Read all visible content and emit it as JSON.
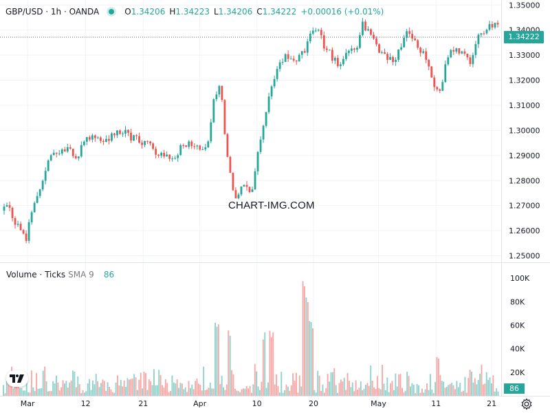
{
  "header": {
    "symbol": "GBP/USD · 1h · OANDA",
    "o_label": "O",
    "o_value": "1.34206",
    "h_label": "H",
    "h_value": "1.34223",
    "l_label": "L",
    "l_value": "1.34206",
    "c_label": "C",
    "c_value": "1.34222",
    "change": "+0.00016 (+0.01%)"
  },
  "last_price_label": "1.34222",
  "watermark": "CHART-IMG.COM",
  "volume_header": {
    "title": "Volume · Ticks",
    "sma": "SMA 9",
    "value": "86"
  },
  "volume_last_label": "86",
  "colors": {
    "up": "#26a69a",
    "down": "#ef5350",
    "text": "#131722",
    "grid": "#f0f3fa",
    "sma": "#2962ff"
  },
  "chart_data": [
    {
      "type": "candlestick",
      "title": "GBP/USD · 1h · OANDA",
      "y_ticks": [
        "1.35000",
        "1.34000",
        "1.33000",
        "1.32000",
        "1.31000",
        "1.30000",
        "1.29000",
        "1.28000",
        "1.27000",
        "1.26000",
        "1.25000"
      ],
      "ylim": [
        1.2474,
        1.352
      ],
      "x_ticks": [
        {
          "label": "Mar",
          "pos": 0.05
        },
        {
          "label": "12",
          "pos": 0.167
        },
        {
          "label": "21",
          "pos": 0.283
        },
        {
          "label": "Apr",
          "pos": 0.397
        },
        {
          "label": "10",
          "pos": 0.512
        },
        {
          "label": "20",
          "pos": 0.626
        },
        {
          "label": "May",
          "pos": 0.757
        },
        {
          "label": "11",
          "pos": 0.873
        },
        {
          "label": "21",
          "pos": 0.985
        }
      ],
      "close_path": [
        [
          0,
          1.268
        ],
        [
          0.012,
          1.2715
        ],
        [
          0.03,
          1.263
        ],
        [
          0.05,
          1.2575
        ],
        [
          0.065,
          1.27
        ],
        [
          0.085,
          1.281
        ],
        [
          0.1,
          1.29
        ],
        [
          0.13,
          1.2935
        ],
        [
          0.15,
          1.289
        ],
        [
          0.175,
          1.2975
        ],
        [
          0.21,
          1.296
        ],
        [
          0.24,
          1.3005
        ],
        [
          0.26,
          1.2975
        ],
        [
          0.29,
          1.2945
        ],
        [
          0.32,
          1.291
        ],
        [
          0.345,
          1.288
        ],
        [
          0.37,
          1.295
        ],
        [
          0.395,
          1.2935
        ],
        [
          0.415,
          1.292
        ],
        [
          0.43,
          1.314
        ],
        [
          0.44,
          1.3195
        ],
        [
          0.455,
          1.29
        ],
        [
          0.47,
          1.273
        ],
        [
          0.49,
          1.279
        ],
        [
          0.505,
          1.276
        ],
        [
          0.52,
          1.295
        ],
        [
          0.54,
          1.315
        ],
        [
          0.57,
          1.33
        ],
        [
          0.595,
          1.328
        ],
        [
          0.615,
          1.333
        ],
        [
          0.63,
          1.342
        ],
        [
          0.655,
          1.332
        ],
        [
          0.68,
          1.326
        ],
        [
          0.7,
          1.333
        ],
        [
          0.715,
          1.33
        ],
        [
          0.725,
          1.343
        ],
        [
          0.75,
          1.336
        ],
        [
          0.77,
          1.329
        ],
        [
          0.795,
          1.328
        ],
        [
          0.815,
          1.339
        ],
        [
          0.835,
          1.335
        ],
        [
          0.855,
          1.33
        ],
        [
          0.87,
          1.318
        ],
        [
          0.885,
          1.3165
        ],
        [
          0.9,
          1.33
        ],
        [
          0.925,
          1.332
        ],
        [
          0.945,
          1.328
        ],
        [
          0.965,
          1.339
        ],
        [
          0.985,
          1.342
        ],
        [
          1.0,
          1.3422
        ]
      ],
      "last_close": 1.34222
    },
    {
      "type": "bar",
      "title": "Volume · Ticks",
      "y_ticks": [
        "100K",
        "80K",
        "60K",
        "40K",
        "20K"
      ],
      "ylim": [
        0,
        113000
      ],
      "baseline_max": 26000,
      "spikes": [
        {
          "x": 0.43,
          "value": 64000
        },
        {
          "x": 0.455,
          "value": 56000
        },
        {
          "x": 0.525,
          "value": 55000
        },
        {
          "x": 0.54,
          "value": 58000
        },
        {
          "x": 0.605,
          "value": 103000
        },
        {
          "x": 0.612,
          "value": 92000
        },
        {
          "x": 0.617,
          "value": 70000
        },
        {
          "x": 0.62,
          "value": 60000
        },
        {
          "x": 0.875,
          "value": 35000
        }
      ],
      "sma_label": "SMA 9",
      "last_value": 86
    }
  ]
}
